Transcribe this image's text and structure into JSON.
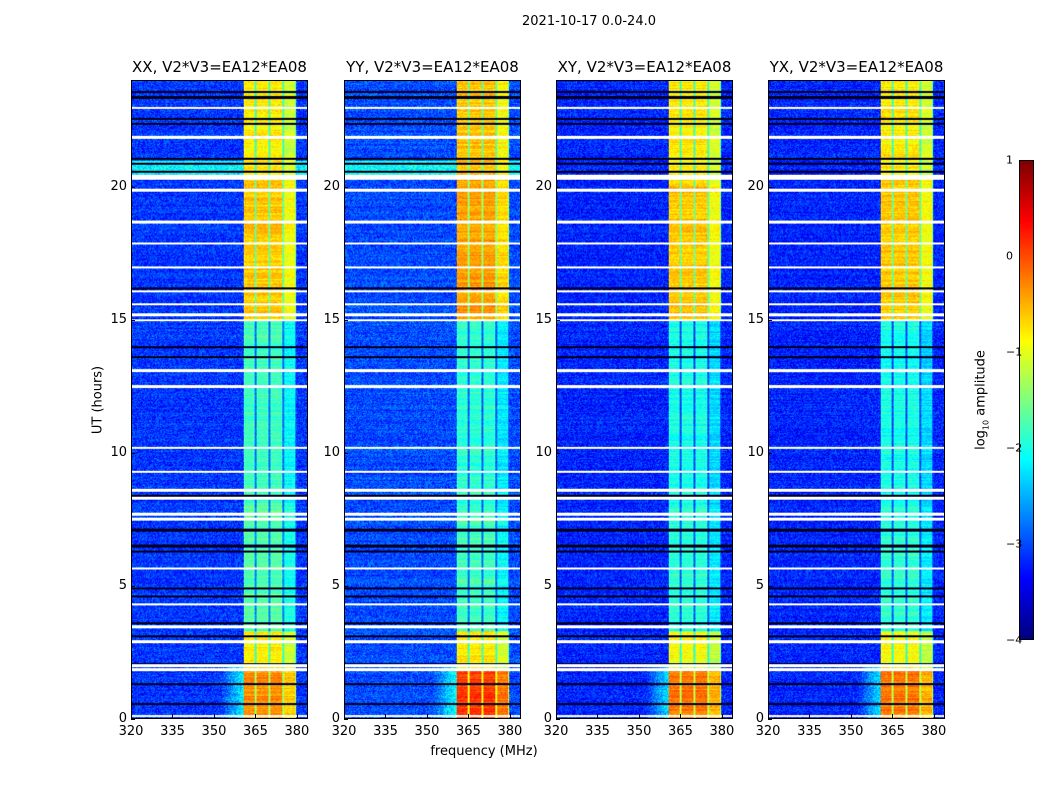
{
  "chart_data": {
    "type": "heatmap",
    "title": "2021-10-17 0.0-24.0",
    "xlabel": "frequency (MHz)",
    "ylabel": "UT (hours)",
    "xlim": [
      320,
      384
    ],
    "ylim": [
      0,
      24
    ],
    "xticks": [
      "320",
      "335",
      "350",
      "365",
      "380"
    ],
    "yticks": [
      "0",
      "5",
      "10",
      "15",
      "20"
    ],
    "panels": [
      {
        "title": "XX, V2*V3=EA12*EA08",
        "pol": "XX",
        "band_levels": [
          -0.3,
          -0.8,
          -1.7,
          -1.8,
          -0.6,
          -0.8
        ],
        "bg_level": -3.1
      },
      {
        "title": "YY, V2*V3=EA12*EA08",
        "pol": "YY",
        "band_levels": [
          0.1,
          -0.8,
          -1.8,
          -1.9,
          -0.4,
          -0.6
        ],
        "bg_level": -3.0
      },
      {
        "title": "XY, V2*V3=EA12*EA08",
        "pol": "XY",
        "band_levels": [
          -0.2,
          -0.9,
          -1.9,
          -2.0,
          -0.6,
          -0.8
        ],
        "bg_level": -3.2
      },
      {
        "title": "YX, V2*V3=EA12*EA08",
        "pol": "YX",
        "band_levels": [
          -0.2,
          -0.9,
          -1.9,
          -2.0,
          -0.6,
          -0.8
        ],
        "bg_level": -3.2
      }
    ],
    "time_segments_hours": [
      [
        0,
        1.8
      ],
      [
        1.8,
        3.3
      ],
      [
        3.3,
        8.0
      ],
      [
        8.0,
        15.0
      ],
      [
        15.0,
        20.3
      ],
      [
        20.3,
        24.0
      ]
    ],
    "band_channels_mhz": [
      [
        360.5,
        365
      ],
      [
        365,
        370
      ],
      [
        370,
        375
      ],
      [
        375,
        380
      ]
    ],
    "flagged_rows_hours": [
      0.1,
      1.85,
      2.0,
      2.9,
      3.45,
      4.3,
      5.65,
      7.5,
      7.7,
      8.3,
      8.6,
      9.3,
      10.2,
      12.5,
      13.1,
      15.0,
      15.2,
      15.6,
      16.1,
      17.0,
      17.9,
      18.7,
      19.9,
      20.35,
      21.9,
      23.0
    ],
    "black_rows_hours": [
      0.55,
      1.3,
      2.05,
      3.1,
      3.6,
      4.6,
      4.9,
      6.3,
      6.5,
      7.1,
      8.4,
      13.6,
      14.0,
      16.2,
      20.6,
      20.9,
      21.1,
      22.4,
      22.6,
      23.4,
      23.6
    ],
    "colorbar": {
      "label": "log",
      "label_sub": "10",
      "label_rest": " amplitude",
      "ticks": [
        "1",
        "0",
        "−1",
        "−2",
        "−3",
        "−4"
      ],
      "range": [
        -4,
        1
      ],
      "colormap": "jet"
    }
  }
}
